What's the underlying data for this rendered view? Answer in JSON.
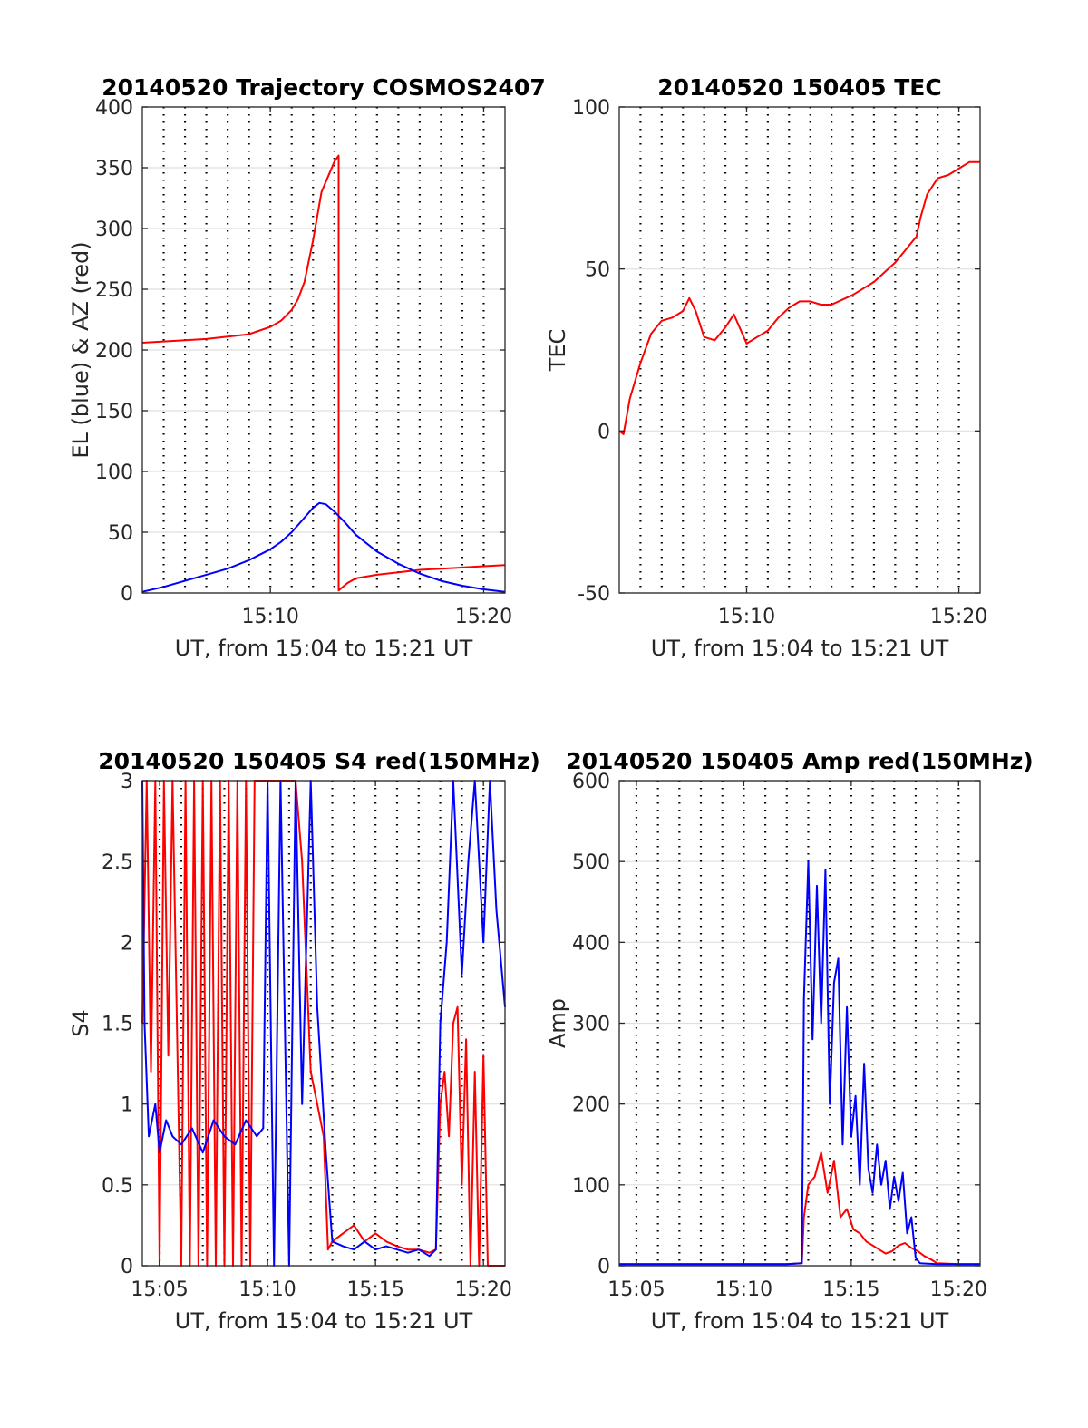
{
  "chart_data": [
    {
      "id": "trajectory",
      "type": "line",
      "title": "20140520 Trajectory COSMOS2407",
      "xlabel": "UT, from 15:04 to 15:21 UT",
      "ylabel": "EL (blue) & AZ (red)",
      "xlim": [
        "15:04",
        "15:21"
      ],
      "ylim": [
        0,
        400
      ],
      "yticks": [
        0,
        50,
        100,
        150,
        200,
        250,
        300,
        350,
        400
      ],
      "xticks": [
        "15:10",
        "15:20"
      ],
      "grid": true,
      "series": [
        {
          "color": "#ff0000",
          "x": [
            "15:04",
            "15:05",
            "15:06",
            "15:07",
            "15:08",
            "15:09",
            "15:10",
            "15:10.5",
            "15:11",
            "15:11.3",
            "15:11.6",
            "15:12",
            "15:12.4",
            "15:13",
            "15:13.2",
            "15:13.2",
            "15:13.6",
            "15:14",
            "15:15",
            "15:16",
            "15:17",
            "15:18",
            "15:19",
            "15:20",
            "15:21"
          ],
          "y": [
            206,
            207,
            208,
            209,
            211,
            213,
            219,
            224,
            233,
            242,
            256,
            290,
            330,
            355,
            360,
            2,
            8,
            12,
            15,
            17,
            19,
            20,
            21,
            22,
            23
          ]
        },
        {
          "color": "#0000ff",
          "x": [
            "15:04",
            "15:05",
            "15:06",
            "15:07",
            "15:08",
            "15:09",
            "15:10",
            "15:10.5",
            "15:11",
            "15:11.5",
            "15:12",
            "15:12.3",
            "15:12.6",
            "15:13",
            "15:13.5",
            "15:14",
            "15:15",
            "15:16",
            "15:17",
            "15:18",
            "15:19",
            "15:20",
            "15:21"
          ],
          "y": [
            1,
            5,
            10,
            15,
            20,
            27,
            36,
            42,
            50,
            60,
            70,
            74,
            73,
            67,
            58,
            48,
            34,
            24,
            16,
            10,
            6,
            3,
            1
          ]
        }
      ]
    },
    {
      "id": "tec",
      "type": "line",
      "title": "20140520 150405 TEC",
      "xlabel": "UT, from 15:04 to 15:21 UT",
      "ylabel": "TEC",
      "xlim": [
        "15:04",
        "15:21"
      ],
      "ylim": [
        -50,
        100
      ],
      "yticks": [
        -50,
        0,
        50,
        100
      ],
      "xticks": [
        "15:10",
        "15:20"
      ],
      "grid": true,
      "series": [
        {
          "color": "#ff0000",
          "x": [
            "15:04",
            "15:04.2",
            "15:04.5",
            "15:05",
            "15:05.5",
            "15:06",
            "15:06.5",
            "15:07",
            "15:07.3",
            "15:07.6",
            "15:08",
            "15:08.5",
            "15:09",
            "15:09.4",
            "15:09.8",
            "15:10",
            "15:10.5",
            "15:11",
            "15:11.5",
            "15:12",
            "15:12.5",
            "15:13",
            "15:13.5",
            "15:14",
            "15:15",
            "15:16",
            "15:17",
            "15:17.5",
            "15:18",
            "15:18.2",
            "15:18.5",
            "15:19",
            "15:19.5",
            "15:20",
            "15:20.5",
            "15:21"
          ],
          "y": [
            0,
            -1,
            10,
            21,
            30,
            34,
            35,
            37,
            41,
            37,
            29,
            28,
            32,
            36,
            30,
            27,
            29,
            31,
            35,
            38,
            40,
            40,
            39,
            39,
            42,
            46,
            52,
            56,
            60,
            66,
            73,
            78,
            79,
            81,
            83,
            83
          ]
        }
      ]
    },
    {
      "id": "s4",
      "type": "line",
      "title": "20140520 150405 S4 red(150MHz)",
      "xlabel": "UT, from 15:04 to 15:21 UT",
      "ylabel": "S4",
      "xlim": [
        "15:04.2",
        "15:21"
      ],
      "ylim": [
        0,
        3
      ],
      "yticks": [
        0,
        0.5,
        1,
        1.5,
        2,
        2.5,
        3
      ],
      "xticks": [
        "15:05",
        "15:10",
        "15:15",
        "15:20"
      ],
      "grid": true,
      "series": [
        {
          "color": "#ff0000",
          "x": [
            "15:04.2",
            "15:04.4",
            "15:04.6",
            "15:04.8",
            "15:05.0",
            "15:05.2",
            "15:05.4",
            "15:05.6",
            "15:05.8",
            "15:06.0",
            "15:06.2",
            "15:06.4",
            "15:06.6",
            "15:06.8",
            "15:07.0",
            "15:07.2",
            "15:07.4",
            "15:07.6",
            "15:07.8",
            "15:08.0",
            "15:08.2",
            "15:08.4",
            "15:08.6",
            "15:08.8",
            "15:09.0",
            "15:09.2",
            "15:09.4",
            "15:09.6",
            "15:09.8",
            "15:10.0",
            "15:10.3",
            "15:10.6",
            "15:11.0",
            "15:11.3",
            "15:11.6",
            "15:12.0",
            "15:12.3",
            "15:12.6",
            "15:12.8",
            "15:13.0",
            "15:13.5",
            "15:14.0",
            "15:14.5",
            "15:15.0",
            "15:15.5",
            "15:16.0",
            "15:16.5",
            "15:17.0",
            "15:17.5",
            "15:17.8",
            "15:18.0",
            "15:18.2",
            "15:18.4",
            "15:18.6",
            "15:18.8",
            "15:19.0",
            "15:19.2",
            "15:19.4",
            "15:19.6",
            "15:19.8",
            "15:20.0",
            "15:20.2",
            "15:20.4",
            "15:20.6",
            "15:20.8",
            "15:21.0"
          ],
          "y": [
            1.5,
            3,
            1.2,
            3,
            0,
            3,
            1.3,
            3,
            1.5,
            0,
            3,
            0,
            3,
            0,
            3,
            0,
            3,
            0,
            3,
            0,
            3,
            0,
            3,
            0,
            3,
            0,
            3,
            3,
            3,
            3,
            3,
            3,
            3,
            3,
            2.5,
            1.2,
            1.0,
            0.8,
            0.1,
            0.15,
            0.2,
            0.25,
            0.15,
            0.2,
            0.15,
            0.12,
            0.1,
            0.1,
            0.08,
            0.1,
            1.0,
            1.2,
            0.8,
            1.5,
            1.6,
            0.5,
            1.4,
            0,
            1.2,
            0,
            1.3,
            0,
            0,
            0,
            0,
            0
          ]
        },
        {
          "color": "#0000ff",
          "x": [
            "15:04.2",
            "15:04.3",
            "15:04.5",
            "15:04.8",
            "15:05.0",
            "15:05.3",
            "15:05.6",
            "15:06.0",
            "15:06.5",
            "15:07.0",
            "15:07.5",
            "15:08.0",
            "15:08.5",
            "15:09.0",
            "15:09.5",
            "15:09.8",
            "15:10.0",
            "15:10.3",
            "15:10.6",
            "15:11.0",
            "15:11.3",
            "15:11.6",
            "15:12.0",
            "15:12.3",
            "15:12.7",
            "15:13.0",
            "15:13.5",
            "15:14.0",
            "15:14.5",
            "15:15.0",
            "15:15.5",
            "15:16.0",
            "15:16.5",
            "15:17.0",
            "15:17.5",
            "15:17.8",
            "15:18.0",
            "15:18.3",
            "15:18.6",
            "15:19.0",
            "15:19.3",
            "15:19.6",
            "15:20.0",
            "15:20.3",
            "15:20.6",
            "15:21.0"
          ],
          "y": [
            3,
            1.5,
            0.8,
            1.0,
            0.7,
            0.9,
            0.8,
            0.75,
            0.85,
            0.7,
            0.9,
            0.8,
            0.75,
            0.9,
            0.8,
            0.85,
            3,
            0,
            3,
            0,
            3,
            1.0,
            3,
            1.6,
            0.7,
            0.15,
            0.12,
            0.1,
            0.15,
            0.1,
            0.12,
            0.1,
            0.08,
            0.1,
            0.06,
            0.1,
            1.5,
            2.0,
            3,
            1.8,
            2.5,
            3,
            2.0,
            3,
            2.2,
            1.6
          ]
        }
      ]
    },
    {
      "id": "amp",
      "type": "line",
      "title": "20140520 150405 Amp red(150MHz)",
      "xlabel": "UT, from 15:04 to 15:21 UT",
      "ylabel": "Amp",
      "xlim": [
        "15:04.2",
        "15:21"
      ],
      "ylim": [
        0,
        600
      ],
      "yticks": [
        0,
        100,
        200,
        300,
        400,
        500,
        600
      ],
      "xticks": [
        "15:05",
        "15:10",
        "15:15",
        "15:20"
      ],
      "grid": true,
      "series": [
        {
          "color": "#ff0000",
          "x": [
            "15:04.2",
            "15:06",
            "15:08",
            "15:10",
            "15:12",
            "15:12.7",
            "15:12.8",
            "15:13.0",
            "15:13.3",
            "15:13.6",
            "15:13.9",
            "15:14.2",
            "15:14.5",
            "15:14.8",
            "15:15.1",
            "15:15.4",
            "15:15.7",
            "15:16.0",
            "15:16.3",
            "15:16.6",
            "15:16.9",
            "15:17.2",
            "15:17.5",
            "15:17.8",
            "15:18.1",
            "15:18.4",
            "15:18.7",
            "15:19.0",
            "15:20",
            "15:21"
          ],
          "y": [
            2,
            2,
            2,
            2,
            2,
            3,
            60,
            100,
            110,
            140,
            90,
            130,
            60,
            70,
            45,
            40,
            30,
            25,
            20,
            15,
            18,
            25,
            28,
            22,
            18,
            12,
            8,
            3,
            2,
            2
          ]
        },
        {
          "color": "#0000ff",
          "x": [
            "15:04.2",
            "15:06",
            "15:08",
            "15:10",
            "15:12",
            "15:12.7",
            "15:12.8",
            "15:13.0",
            "15:13.2",
            "15:13.4",
            "15:13.6",
            "15:13.8",
            "15:14.0",
            "15:14.2",
            "15:14.4",
            "15:14.6",
            "15:14.8",
            "15:15.0",
            "15:15.2",
            "15:15.4",
            "15:15.6",
            "15:15.8",
            "15:16.0",
            "15:16.2",
            "15:16.4",
            "15:16.6",
            "15:16.8",
            "15:17.0",
            "15:17.2",
            "15:17.4",
            "15:17.6",
            "15:17.8",
            "15:18.0",
            "15:18.2",
            "15:19",
            "15:20",
            "15:21"
          ],
          "y": [
            2,
            2,
            2,
            2,
            2,
            3,
            330,
            500,
            280,
            470,
            300,
            490,
            200,
            350,
            380,
            150,
            320,
            160,
            210,
            100,
            250,
            120,
            90,
            150,
            100,
            130,
            70,
            110,
            80,
            115,
            40,
            60,
            10,
            3,
            2,
            2,
            2
          ]
        }
      ]
    }
  ]
}
